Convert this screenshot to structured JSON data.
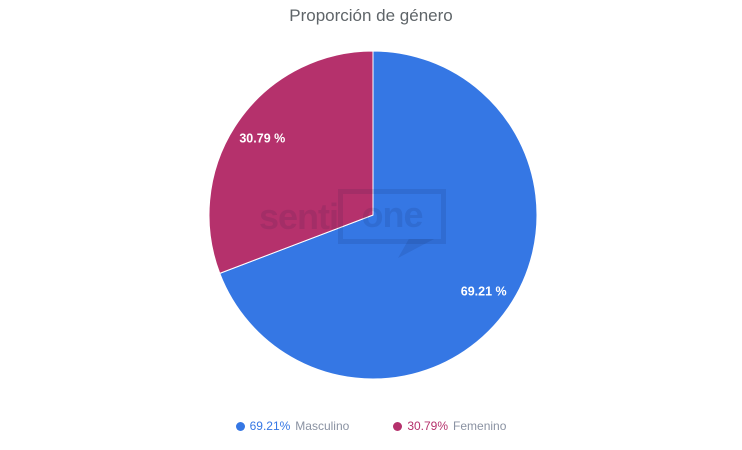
{
  "title": "Proporción de género",
  "watermark": {
    "left": "senti",
    "right": "one"
  },
  "colors": {
    "masculino_blue": "#3577e4",
    "femenino_magenta": "#b5316c",
    "title_gray": "#5f6569",
    "legend_label_gray": "#8a92a2",
    "slice_label_white": "#ffffff",
    "background": "#ffffff"
  },
  "chart_data": {
    "type": "pie",
    "title": "Proporción de género",
    "start_angle_deg": 0,
    "direction": "clockwise",
    "legend_position": "bottom",
    "slices": [
      {
        "name": "Masculino",
        "value": 69.21,
        "percent_label": "69.21 %",
        "legend_value": "69.21%",
        "color": "#3577e4"
      },
      {
        "name": "Femenino",
        "value": 30.79,
        "percent_label": "30.79 %",
        "legend_value": "30.79%",
        "color": "#b5316c"
      }
    ]
  }
}
